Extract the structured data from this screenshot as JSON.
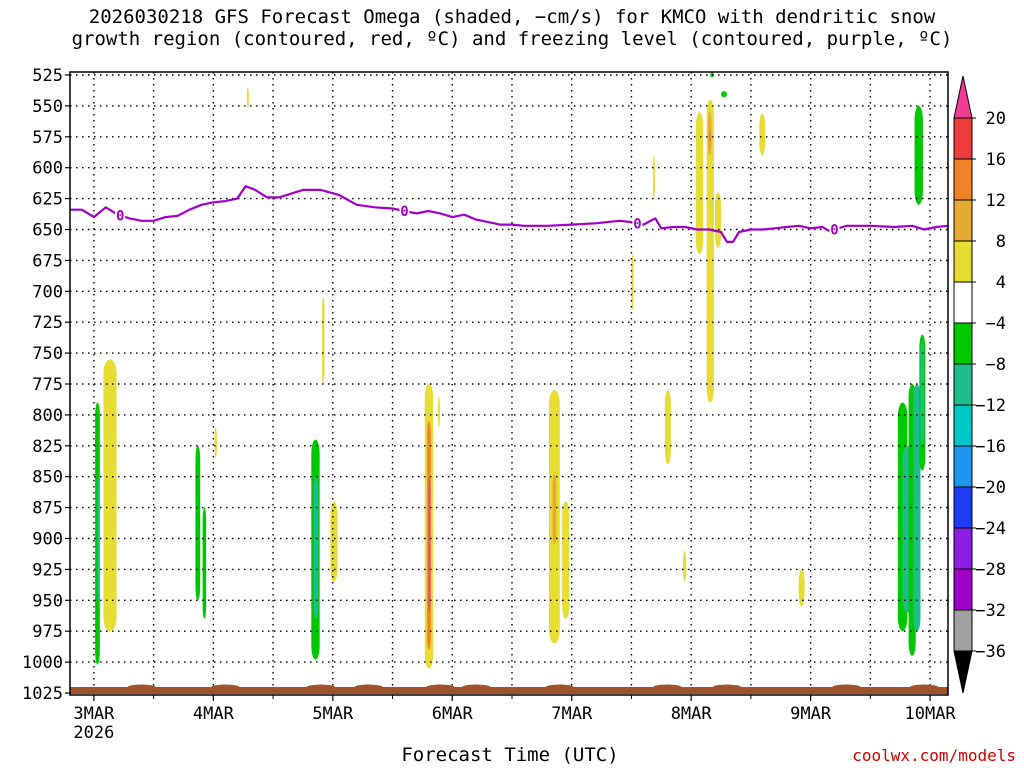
{
  "chart_data": {
    "type": "heatmap",
    "title_line1": "2026030218 GFS Forecast Omega (shaded, −cm/s) for KMCO with dendritic snow",
    "title_line2": "growth region (contoured, red, ºC) and freezing level (contoured, purple, ºC)",
    "xlabel": "Forecast Time (UTC)",
    "credit": "coolwx.com/models",
    "y_ticks": [
      525,
      550,
      575,
      600,
      625,
      650,
      675,
      700,
      725,
      750,
      775,
      800,
      825,
      850,
      875,
      900,
      925,
      950,
      975,
      1000,
      1025
    ],
    "ylim": [
      525,
      1025
    ],
    "xlim": [
      2.8,
      10.15
    ],
    "x_ticks": [
      {
        "t": 3,
        "label": "3MAR",
        "sub": "2026"
      },
      {
        "t": 4,
        "label": "4MAR",
        "sub": ""
      },
      {
        "t": 5,
        "label": "5MAR",
        "sub": ""
      },
      {
        "t": 6,
        "label": "6MAR",
        "sub": ""
      },
      {
        "t": 7,
        "label": "7MAR",
        "sub": ""
      },
      {
        "t": 8,
        "label": "8MAR",
        "sub": ""
      },
      {
        "t": 9,
        "label": "9MAR",
        "sub": ""
      },
      {
        "t": 10,
        "label": "10MAR",
        "sub": ""
      }
    ],
    "colorbar": {
      "labels": [
        "20",
        "16",
        "12",
        "8",
        "4",
        "−4",
        "−8",
        "−12",
        "−16",
        "−20",
        "−24",
        "−28",
        "−32",
        "−36"
      ],
      "colors": [
        "#f03c96",
        "#f03c3c",
        "#f08228",
        "#e6aa32",
        "#e6dc32",
        "#ffffff",
        "#00c800",
        "#1ebe8c",
        "#00c8c8",
        "#1e96f0",
        "#1e3cf0",
        "#8c1ee6",
        "#a000c8",
        "#a0a0a0",
        "#000000"
      ]
    },
    "freezing_level": {
      "label": "0",
      "points": [
        [
          2.8,
          634
        ],
        [
          2.9,
          634
        ],
        [
          3.0,
          640
        ],
        [
          3.1,
          632
        ],
        [
          3.2,
          638
        ],
        [
          3.3,
          641
        ],
        [
          3.4,
          643
        ],
        [
          3.5,
          643
        ],
        [
          3.6,
          640
        ],
        [
          3.7,
          639
        ],
        [
          3.8,
          634
        ],
        [
          3.9,
          630
        ],
        [
          4.0,
          628
        ],
        [
          4.1,
          627
        ],
        [
          4.2,
          625
        ],
        [
          4.27,
          615
        ],
        [
          4.35,
          618
        ],
        [
          4.45,
          624
        ],
        [
          4.55,
          624
        ],
        [
          4.65,
          621
        ],
        [
          4.75,
          618
        ],
        [
          4.9,
          618
        ],
        [
          5.05,
          622
        ],
        [
          5.2,
          630
        ],
        [
          5.35,
          632
        ],
        [
          5.5,
          633
        ],
        [
          5.6,
          635
        ],
        [
          5.7,
          637
        ],
        [
          5.8,
          635
        ],
        [
          5.9,
          637
        ],
        [
          6.0,
          640
        ],
        [
          6.1,
          638
        ],
        [
          6.2,
          642
        ],
        [
          6.3,
          644
        ],
        [
          6.4,
          646
        ],
        [
          6.5,
          646
        ],
        [
          6.6,
          647
        ],
        [
          6.8,
          647
        ],
        [
          7.0,
          646
        ],
        [
          7.2,
          645
        ],
        [
          7.4,
          643
        ],
        [
          7.5,
          644
        ],
        [
          7.6,
          646
        ],
        [
          7.7,
          641
        ],
        [
          7.75,
          649
        ],
        [
          7.85,
          648
        ],
        [
          7.95,
          648
        ],
        [
          8.05,
          650
        ],
        [
          8.15,
          650
        ],
        [
          8.25,
          652
        ],
        [
          8.3,
          660
        ],
        [
          8.35,
          660
        ],
        [
          8.4,
          652
        ],
        [
          8.5,
          650
        ],
        [
          8.6,
          650
        ],
        [
          8.7,
          649
        ],
        [
          8.8,
          648
        ],
        [
          8.9,
          647
        ],
        [
          9.0,
          649
        ],
        [
          9.1,
          648
        ],
        [
          9.15,
          651
        ],
        [
          9.2,
          650
        ],
        [
          9.3,
          647
        ],
        [
          9.5,
          647
        ],
        [
          9.7,
          648
        ],
        [
          9.85,
          647
        ],
        [
          9.95,
          650
        ],
        [
          10.05,
          648
        ],
        [
          10.15,
          647
        ]
      ],
      "label_t": [
        3.22,
        5.6,
        7.55,
        9.2
      ]
    },
    "omega_regions": [
      {
        "t0": 3.01,
        "t1": 3.05,
        "p0": 790,
        "p1": 1002,
        "color": "#00c800"
      },
      {
        "t0": 3.08,
        "t1": 3.19,
        "p0": 755,
        "p1": 975,
        "color": "#e6dc32"
      },
      {
        "t0": 3.03,
        "t1": 3.04,
        "p0": 850,
        "p1": 950,
        "color": "#1ebe8c"
      },
      {
        "t0": 3.85,
        "t1": 3.89,
        "p0": 825,
        "p1": 950,
        "color": "#00c800"
      },
      {
        "t0": 3.91,
        "t1": 3.94,
        "p0": 875,
        "p1": 965,
        "color": "#00c800"
      },
      {
        "t0": 4.01,
        "t1": 4.03,
        "p0": 810,
        "p1": 835,
        "color": "#e6dc32"
      },
      {
        "t0": 4.28,
        "t1": 4.29,
        "p0": 535,
        "p1": 552,
        "color": "#e6dc32"
      },
      {
        "t0": 4.82,
        "t1": 4.89,
        "p0": 820,
        "p1": 998,
        "color": "#00c800"
      },
      {
        "t0": 4.84,
        "t1": 4.88,
        "p0": 850,
        "p1": 965,
        "color": "#1ebe8c"
      },
      {
        "t0": 4.91,
        "t1": 4.93,
        "p0": 705,
        "p1": 775,
        "color": "#e6dc32"
      },
      {
        "t0": 4.98,
        "t1": 5.04,
        "p0": 870,
        "p1": 935,
        "color": "#e6dc32"
      },
      {
        "t0": 5.77,
        "t1": 5.84,
        "p0": 775,
        "p1": 1005,
        "color": "#e6dc32"
      },
      {
        "t0": 5.79,
        "t1": 5.82,
        "p0": 805,
        "p1": 990,
        "color": "#f08228"
      },
      {
        "t0": 5.8,
        "t1": 5.81,
        "p0": 850,
        "p1": 960,
        "color": "#f03c96"
      },
      {
        "t0": 5.88,
        "t1": 5.89,
        "p0": 785,
        "p1": 810,
        "color": "#e6dc32"
      },
      {
        "t0": 6.81,
        "t1": 6.9,
        "p0": 780,
        "p1": 985,
        "color": "#e6dc32"
      },
      {
        "t0": 6.84,
        "t1": 6.87,
        "p0": 848,
        "p1": 905,
        "color": "#e6aa32"
      },
      {
        "t0": 6.92,
        "t1": 6.98,
        "p0": 870,
        "p1": 965,
        "color": "#e6dc32"
      },
      {
        "t0": 7.5,
        "t1": 7.51,
        "p0": 670,
        "p1": 715,
        "color": "#e6dc32"
      },
      {
        "t0": 7.68,
        "t1": 7.69,
        "p0": 590,
        "p1": 625,
        "color": "#e6dc32"
      },
      {
        "t0": 7.78,
        "t1": 7.83,
        "p0": 780,
        "p1": 840,
        "color": "#e6dc32"
      },
      {
        "t0": 7.93,
        "t1": 7.96,
        "p0": 910,
        "p1": 935,
        "color": "#e6dc32"
      },
      {
        "t0": 8.04,
        "t1": 8.1,
        "p0": 555,
        "p1": 670,
        "color": "#e6dc32"
      },
      {
        "t0": 8.13,
        "t1": 8.19,
        "p0": 545,
        "p1": 790,
        "color": "#e6dc32"
      },
      {
        "t0": 8.14,
        "t1": 8.17,
        "p0": 555,
        "p1": 590,
        "color": "#e6aa32"
      },
      {
        "t0": 8.15,
        "t1": 8.16,
        "p0": 570,
        "p1": 580,
        "color": "#f08228"
      },
      {
        "t0": 8.2,
        "t1": 8.25,
        "p0": 620,
        "p1": 665,
        "color": "#e6dc32"
      },
      {
        "t0": 8.25,
        "t1": 8.3,
        "p0": 538,
        "p1": 543,
        "color": "#00c800"
      },
      {
        "t0": 8.16,
        "t1": 8.19,
        "p0": 523,
        "p1": 527,
        "color": "#00c800"
      },
      {
        "t0": 8.57,
        "t1": 8.62,
        "p0": 556,
        "p1": 590,
        "color": "#e6dc32"
      },
      {
        "t0": 8.9,
        "t1": 8.95,
        "p0": 925,
        "p1": 955,
        "color": "#e6dc32"
      },
      {
        "t0": 9.73,
        "t1": 9.81,
        "p0": 790,
        "p1": 975,
        "color": "#00c800"
      },
      {
        "t0": 9.77,
        "t1": 9.85,
        "p0": 825,
        "p1": 960,
        "color": "#1ebe8c"
      },
      {
        "t0": 9.82,
        "t1": 9.88,
        "p0": 775,
        "p1": 995,
        "color": "#00c800"
      },
      {
        "t0": 9.86,
        "t1": 9.92,
        "p0": 775,
        "p1": 975,
        "color": "#1ebe8c"
      },
      {
        "t0": 9.91,
        "t1": 9.96,
        "p0": 735,
        "p1": 845,
        "color": "#00c800"
      },
      {
        "t0": 9.92,
        "t1": 9.95,
        "p0": 740,
        "p1": 825,
        "color": "#1ebe8c"
      },
      {
        "t0": 9.87,
        "t1": 9.94,
        "p0": 550,
        "p1": 630,
        "color": "#00c800"
      }
    ],
    "terrain_color": "#a0522d",
    "freezing_color": "#a000c8"
  }
}
